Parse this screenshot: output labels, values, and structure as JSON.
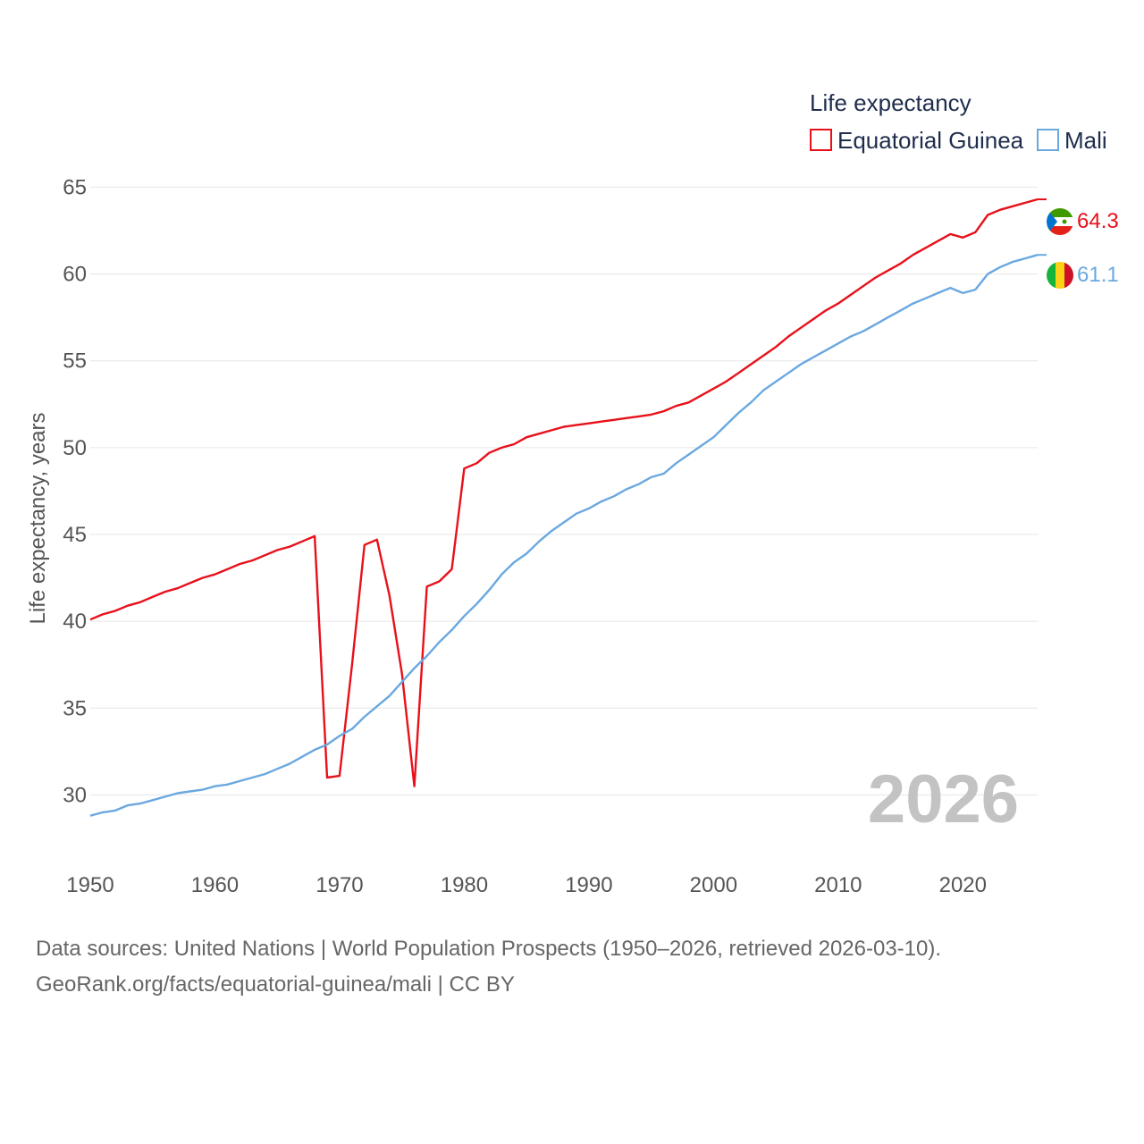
{
  "chart_data": {
    "type": "line",
    "legend_title": "Life expectancy",
    "ylabel": "Life expectancy, years",
    "xlim": [
      1950,
      2026
    ],
    "ylim": [
      27.5,
      66
    ],
    "yticks": [
      30,
      35,
      40,
      45,
      50,
      55,
      60,
      65
    ],
    "xticks": [
      1950,
      1960,
      1970,
      1980,
      1990,
      2000,
      2010,
      2020
    ],
    "year_label": "2026",
    "series": [
      {
        "name": "Equatorial Guinea",
        "color": "#e8101a",
        "end_label": "64.3",
        "flag": "equatorial-guinea-flag-icon",
        "points": [
          [
            1950,
            40.1
          ],
          [
            1951,
            40.4
          ],
          [
            1952,
            40.6
          ],
          [
            1953,
            40.9
          ],
          [
            1954,
            41.1
          ],
          [
            1955,
            41.4
          ],
          [
            1956,
            41.7
          ],
          [
            1957,
            41.9
          ],
          [
            1958,
            42.2
          ],
          [
            1959,
            42.5
          ],
          [
            1960,
            42.7
          ],
          [
            1961,
            43.0
          ],
          [
            1962,
            43.3
          ],
          [
            1963,
            43.5
          ],
          [
            1964,
            43.8
          ],
          [
            1965,
            44.1
          ],
          [
            1966,
            44.3
          ],
          [
            1967,
            44.6
          ],
          [
            1968,
            44.9
          ],
          [
            1969,
            31.0
          ],
          [
            1970,
            31.1
          ],
          [
            1971,
            37.5
          ],
          [
            1972,
            44.4
          ],
          [
            1973,
            44.7
          ],
          [
            1974,
            41.5
          ],
          [
            1975,
            37.0
          ],
          [
            1976,
            30.5
          ],
          [
            1977,
            42.0
          ],
          [
            1978,
            42.3
          ],
          [
            1979,
            43.0
          ],
          [
            1980,
            48.8
          ],
          [
            1981,
            49.1
          ],
          [
            1982,
            49.7
          ],
          [
            1983,
            50.0
          ],
          [
            1984,
            50.2
          ],
          [
            1985,
            50.6
          ],
          [
            1986,
            50.8
          ],
          [
            1987,
            51.0
          ],
          [
            1988,
            51.2
          ],
          [
            1989,
            51.3
          ],
          [
            1990,
            51.4
          ],
          [
            1991,
            51.5
          ],
          [
            1992,
            51.6
          ],
          [
            1993,
            51.7
          ],
          [
            1994,
            51.8
          ],
          [
            1995,
            51.9
          ],
          [
            1996,
            52.1
          ],
          [
            1997,
            52.4
          ],
          [
            1998,
            52.6
          ],
          [
            1999,
            53.0
          ],
          [
            2000,
            53.4
          ],
          [
            2001,
            53.8
          ],
          [
            2002,
            54.3
          ],
          [
            2003,
            54.8
          ],
          [
            2004,
            55.3
          ],
          [
            2005,
            55.8
          ],
          [
            2006,
            56.4
          ],
          [
            2007,
            56.9
          ],
          [
            2008,
            57.4
          ],
          [
            2009,
            57.9
          ],
          [
            2010,
            58.3
          ],
          [
            2011,
            58.8
          ],
          [
            2012,
            59.3
          ],
          [
            2013,
            59.8
          ],
          [
            2014,
            60.2
          ],
          [
            2015,
            60.6
          ],
          [
            2016,
            61.1
          ],
          [
            2017,
            61.5
          ],
          [
            2018,
            61.9
          ],
          [
            2019,
            62.3
          ],
          [
            2020,
            62.1
          ],
          [
            2021,
            62.4
          ],
          [
            2022,
            63.4
          ],
          [
            2023,
            63.7
          ],
          [
            2024,
            63.9
          ],
          [
            2025,
            64.1
          ],
          [
            2026,
            64.3
          ]
        ]
      },
      {
        "name": "Mali",
        "color": "#6aa8e0",
        "end_label": "61.1",
        "flag": "mali-flag-icon",
        "points": [
          [
            1950,
            28.8
          ],
          [
            1951,
            29.0
          ],
          [
            1952,
            29.1
          ],
          [
            1953,
            29.4
          ],
          [
            1954,
            29.5
          ],
          [
            1955,
            29.7
          ],
          [
            1956,
            29.9
          ],
          [
            1957,
            30.1
          ],
          [
            1958,
            30.2
          ],
          [
            1959,
            30.3
          ],
          [
            1960,
            30.5
          ],
          [
            1961,
            30.6
          ],
          [
            1962,
            30.8
          ],
          [
            1963,
            31.0
          ],
          [
            1964,
            31.2
          ],
          [
            1965,
            31.5
          ],
          [
            1966,
            31.8
          ],
          [
            1967,
            32.2
          ],
          [
            1968,
            32.6
          ],
          [
            1969,
            32.9
          ],
          [
            1970,
            33.4
          ],
          [
            1971,
            33.8
          ],
          [
            1972,
            34.5
          ],
          [
            1973,
            35.1
          ],
          [
            1974,
            35.7
          ],
          [
            1975,
            36.5
          ],
          [
            1976,
            37.3
          ],
          [
            1977,
            38.0
          ],
          [
            1978,
            38.8
          ],
          [
            1979,
            39.5
          ],
          [
            1980,
            40.3
          ],
          [
            1981,
            41.0
          ],
          [
            1982,
            41.8
          ],
          [
            1983,
            42.7
          ],
          [
            1984,
            43.4
          ],
          [
            1985,
            43.9
          ],
          [
            1986,
            44.6
          ],
          [
            1987,
            45.2
          ],
          [
            1988,
            45.7
          ],
          [
            1989,
            46.2
          ],
          [
            1990,
            46.5
          ],
          [
            1991,
            46.9
          ],
          [
            1992,
            47.2
          ],
          [
            1993,
            47.6
          ],
          [
            1994,
            47.9
          ],
          [
            1995,
            48.3
          ],
          [
            1996,
            48.5
          ],
          [
            1997,
            49.1
          ],
          [
            1998,
            49.6
          ],
          [
            1999,
            50.1
          ],
          [
            2000,
            50.6
          ],
          [
            2001,
            51.3
          ],
          [
            2002,
            52.0
          ],
          [
            2003,
            52.6
          ],
          [
            2004,
            53.3
          ],
          [
            2005,
            53.8
          ],
          [
            2006,
            54.3
          ],
          [
            2007,
            54.8
          ],
          [
            2008,
            55.2
          ],
          [
            2009,
            55.6
          ],
          [
            2010,
            56.0
          ],
          [
            2011,
            56.4
          ],
          [
            2012,
            56.7
          ],
          [
            2013,
            57.1
          ],
          [
            2014,
            57.5
          ],
          [
            2015,
            57.9
          ],
          [
            2016,
            58.3
          ],
          [
            2017,
            58.6
          ],
          [
            2018,
            58.9
          ],
          [
            2019,
            59.2
          ],
          [
            2020,
            58.9
          ],
          [
            2021,
            59.1
          ],
          [
            2022,
            60.0
          ],
          [
            2023,
            60.4
          ],
          [
            2024,
            60.7
          ],
          [
            2025,
            60.9
          ],
          [
            2026,
            61.1
          ]
        ]
      }
    ]
  },
  "footer": {
    "sources_line": "Data sources: United Nations | World Population Prospects (1950–2026, retrieved 2026-03-10).",
    "url_line": "GeoRank.org/facts/equatorial-guinea/mali | CC BY"
  }
}
